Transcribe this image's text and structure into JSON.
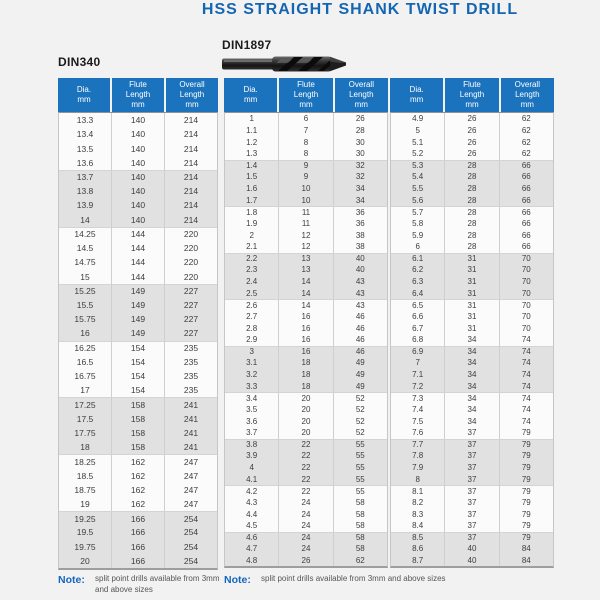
{
  "title": "HSS STRAIGHT SHANK TWIST DRILL",
  "colors": {
    "title_blue": "#1566b2",
    "header_blue": "#1b72bd",
    "note_blue": "#1565c0",
    "row_shaded": "#e1e1e1",
    "row_light": "#fbfbfb"
  },
  "drill_image": "twist-drill-bit",
  "tables": [
    {
      "label": "DIN340",
      "headers": [
        "Dia.\nmm",
        "Flute\nLength\nmm",
        "Overall\nLength\nmm"
      ],
      "rows": [
        [
          13.3,
          140,
          214
        ],
        [
          13.4,
          140,
          214
        ],
        [
          13.5,
          140,
          214
        ],
        [
          13.6,
          140,
          214
        ],
        [
          13.7,
          140,
          214
        ],
        [
          13.8,
          140,
          214
        ],
        [
          13.9,
          140,
          214
        ],
        [
          14,
          140,
          214
        ],
        [
          14.25,
          144,
          220
        ],
        [
          14.5,
          144,
          220
        ],
        [
          14.75,
          144,
          220
        ],
        [
          15,
          144,
          220
        ],
        [
          15.25,
          149,
          227
        ],
        [
          15.5,
          149,
          227
        ],
        [
          15.75,
          149,
          227
        ],
        [
          16,
          149,
          227
        ],
        [
          16.25,
          154,
          235
        ],
        [
          16.5,
          154,
          235
        ],
        [
          16.75,
          154,
          235
        ],
        [
          17,
          154,
          235
        ],
        [
          17.25,
          158,
          241
        ],
        [
          17.5,
          158,
          241
        ],
        [
          17.75,
          158,
          241
        ],
        [
          18,
          158,
          241
        ],
        [
          18.25,
          162,
          247
        ],
        [
          18.5,
          162,
          247
        ],
        [
          18.75,
          162,
          247
        ],
        [
          19,
          162,
          247
        ],
        [
          19.25,
          166,
          254
        ],
        [
          19.5,
          166,
          254
        ],
        [
          19.75,
          166,
          254
        ],
        [
          20,
          166,
          254
        ]
      ],
      "note_label": "Note:",
      "note_text": "split point drills available from 3mm and above sizes"
    },
    {
      "label": "DIN1897",
      "headers": [
        "Dia.\nmm",
        "Flute\nLength\nmm",
        "Overall\nLength\nmm"
      ],
      "rows": [
        [
          1,
          6,
          26
        ],
        [
          1.1,
          7,
          28
        ],
        [
          1.2,
          8,
          30
        ],
        [
          1.3,
          8,
          30
        ],
        [
          1.4,
          9,
          32
        ],
        [
          1.5,
          9,
          32
        ],
        [
          1.6,
          10,
          34
        ],
        [
          1.7,
          10,
          34
        ],
        [
          1.8,
          11,
          36
        ],
        [
          1.9,
          11,
          36
        ],
        [
          2,
          12,
          38
        ],
        [
          2.1,
          12,
          38
        ],
        [
          2.2,
          13,
          40
        ],
        [
          2.3,
          13,
          40
        ],
        [
          2.4,
          14,
          43
        ],
        [
          2.5,
          14,
          43
        ],
        [
          2.6,
          14,
          43
        ],
        [
          2.7,
          16,
          46
        ],
        [
          2.8,
          16,
          46
        ],
        [
          2.9,
          16,
          46
        ],
        [
          3,
          16,
          46
        ],
        [
          3.1,
          18,
          49
        ],
        [
          3.2,
          18,
          49
        ],
        [
          3.3,
          18,
          49
        ],
        [
          3.4,
          20,
          52
        ],
        [
          3.5,
          20,
          52
        ],
        [
          3.6,
          20,
          52
        ],
        [
          3.7,
          20,
          52
        ],
        [
          3.8,
          22,
          55
        ],
        [
          3.9,
          22,
          55
        ],
        [
          4,
          22,
          55
        ],
        [
          4.1,
          22,
          55
        ],
        [
          4.2,
          22,
          55
        ],
        [
          4.3,
          24,
          58
        ],
        [
          4.4,
          24,
          58
        ],
        [
          4.5,
          24,
          58
        ],
        [
          4.6,
          24,
          58
        ],
        [
          4.7,
          24,
          58
        ],
        [
          4.8,
          26,
          62
        ]
      ],
      "note_label": "Note:",
      "note_text": "split point drills available from 3mm and above sizes"
    },
    {
      "label": "",
      "headers": [
        "Dia.\nmm",
        "Flute\nLength\nmm",
        "Overall\nLength\nmm"
      ],
      "rows": [
        [
          4.9,
          26,
          62
        ],
        [
          5,
          26,
          62
        ],
        [
          5.1,
          26,
          62
        ],
        [
          5.2,
          26,
          62
        ],
        [
          5.3,
          28,
          66
        ],
        [
          5.4,
          28,
          66
        ],
        [
          5.5,
          28,
          66
        ],
        [
          5.6,
          28,
          66
        ],
        [
          5.7,
          28,
          66
        ],
        [
          5.8,
          28,
          66
        ],
        [
          5.9,
          28,
          66
        ],
        [
          6,
          28,
          66
        ],
        [
          6.1,
          31,
          70
        ],
        [
          6.2,
          31,
          70
        ],
        [
          6.3,
          31,
          70
        ],
        [
          6.4,
          31,
          70
        ],
        [
          6.5,
          31,
          70
        ],
        [
          6.6,
          31,
          70
        ],
        [
          6.7,
          31,
          70
        ],
        [
          6.8,
          34,
          74
        ],
        [
          6.9,
          34,
          74
        ],
        [
          7,
          34,
          74
        ],
        [
          7.1,
          34,
          74
        ],
        [
          7.2,
          34,
          74
        ],
        [
          7.3,
          34,
          74
        ],
        [
          7.4,
          34,
          74
        ],
        [
          7.5,
          34,
          74
        ],
        [
          7.6,
          37,
          79
        ],
        [
          7.7,
          37,
          79
        ],
        [
          7.8,
          37,
          79
        ],
        [
          7.9,
          37,
          79
        ],
        [
          8,
          37,
          79
        ],
        [
          8.1,
          37,
          79
        ],
        [
          8.2,
          37,
          79
        ],
        [
          8.3,
          37,
          79
        ],
        [
          8.4,
          37,
          79
        ],
        [
          8.5,
          37,
          79
        ],
        [
          8.6,
          40,
          84
        ],
        [
          8.7,
          40,
          84
        ]
      ]
    }
  ]
}
